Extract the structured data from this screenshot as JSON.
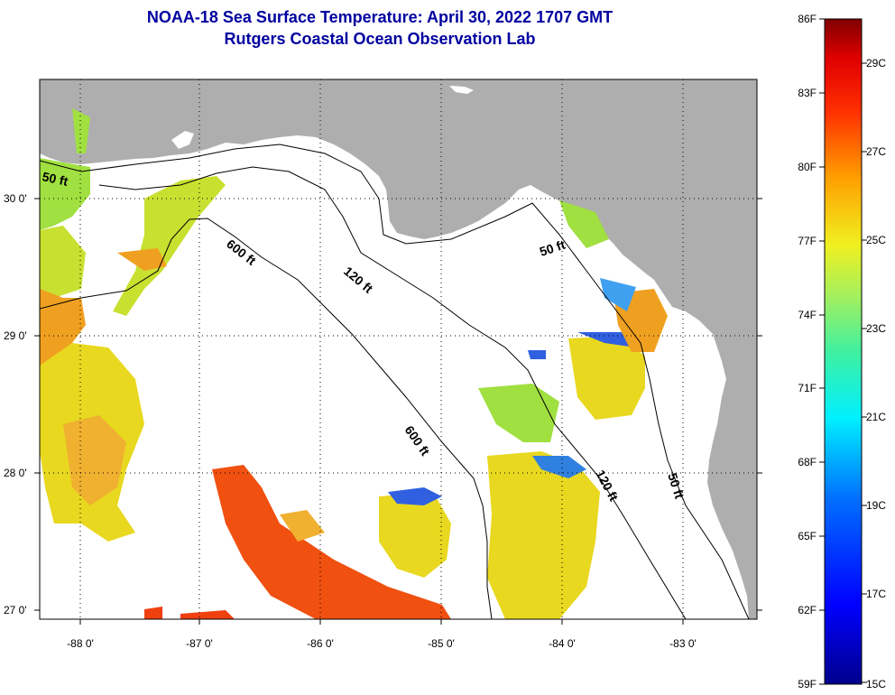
{
  "title": {
    "line1": "NOAA-18 Sea Surface Temperature:  April 30, 2022 1707 GMT",
    "line2": "Rutgers Coastal Ocean Observation Lab"
  },
  "colors": {
    "land": "#aeaeae",
    "water_background": "#ffffff",
    "title": "#0000a0",
    "warm_patch": "#f05010",
    "yellow_patch": "#e8d820",
    "orange_patch": "#f0a020",
    "green_patch": "#a0e040",
    "blue_patch": "#3060e0"
  },
  "axes": {
    "y_ticks": [
      "30 0'",
      "29 0'",
      "28 0'",
      "27 0'"
    ],
    "x_ticks": [
      "-88 0'",
      "-87 0'",
      "-86 0'",
      "-85 0'",
      "-84 0'",
      "-83 0'"
    ]
  },
  "contours": {
    "labels": [
      {
        "text": "50 ft",
        "id": "c50-west"
      },
      {
        "text": "600 ft",
        "id": "c600-north"
      },
      {
        "text": "120 ft",
        "id": "c120-north"
      },
      {
        "text": "50 ft",
        "id": "c50-east"
      },
      {
        "text": "600 ft",
        "id": "c600-south"
      },
      {
        "text": "120 ft",
        "id": "c120-south"
      },
      {
        "text": "50 ft",
        "id": "c50-south"
      }
    ]
  },
  "colorbar": {
    "fahrenheit": [
      "86F",
      "83F",
      "80F",
      "77F",
      "74F",
      "71F",
      "68F",
      "65F",
      "62F",
      "59F"
    ],
    "celsius": [
      "29C",
      "27C",
      "25C",
      "23C",
      "21C",
      "19C",
      "17C",
      "15C"
    ]
  }
}
